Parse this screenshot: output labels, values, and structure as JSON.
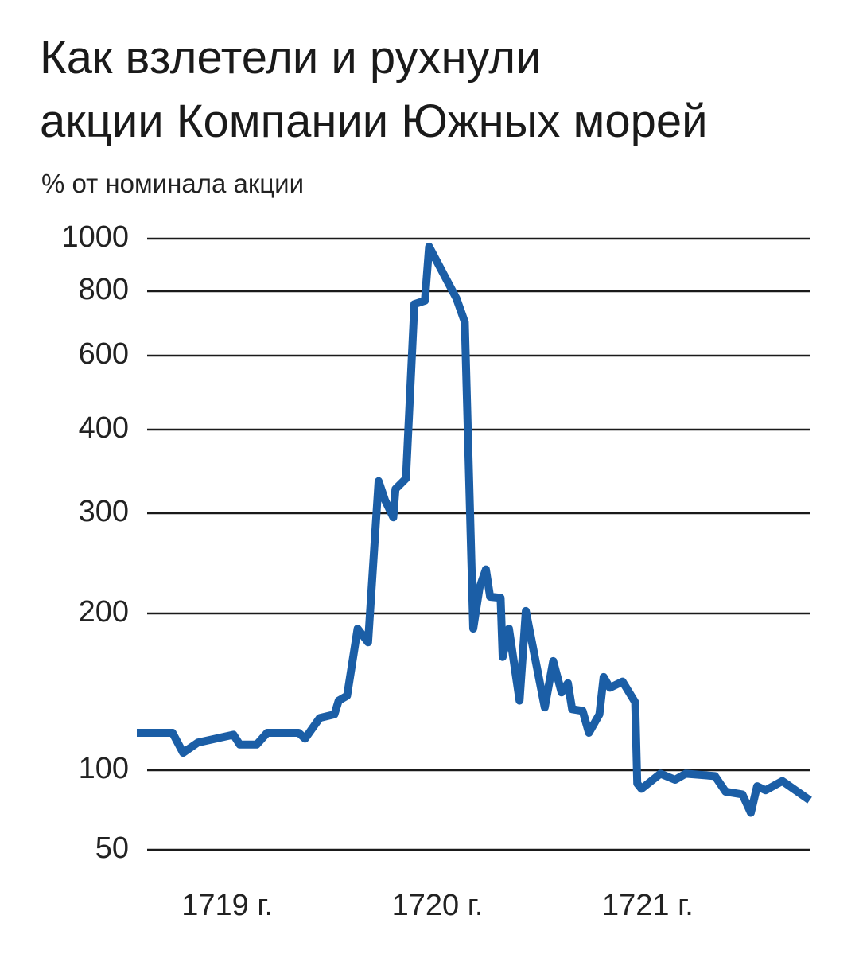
{
  "chart_data": {
    "type": "line",
    "title": [
      "Как взлетели и рухнули",
      "акции Компании Южных морей"
    ],
    "y_label": "% от номинала акции",
    "x": [
      1719.07,
      1719.24,
      1719.29,
      1719.36,
      1719.53,
      1719.56,
      1719.64,
      1719.69,
      1719.84,
      1719.87,
      1719.94,
      1720.01,
      1720.03,
      1720.07,
      1720.12,
      1720.17,
      1720.22,
      1720.25,
      1720.29,
      1720.3,
      1720.35,
      1720.39,
      1720.44,
      1720.46,
      1720.59,
      1720.63,
      1720.67,
      1720.7,
      1720.73,
      1720.75,
      1720.8,
      1720.81,
      1720.84,
      1720.89,
      1720.92,
      1721.01,
      1721.05,
      1721.09,
      1721.12,
      1721.14,
      1721.19,
      1721.22,
      1721.27,
      1721.29,
      1721.32,
      1721.38,
      1721.44,
      1721.45,
      1721.47,
      1721.56,
      1721.63,
      1721.68,
      1721.82,
      1721.87,
      1721.95,
      1721.99,
      1722.02,
      1722.06,
      1722.14,
      1722.27
    ],
    "series": [
      {
        "color": "#1b5ea6",
        "values": [
          118,
          118,
          108,
          113,
          117,
          112,
          112,
          118,
          118,
          115,
          126,
          128,
          136,
          139,
          187,
          176,
          335,
          314,
          295,
          326,
          338,
          755,
          767,
          967,
          775,
          697,
          187,
          222,
          239,
          214,
          213,
          165,
          187,
          136,
          202,
          132,
          162,
          141,
          147,
          131,
          130,
          118,
          128,
          151,
          144,
          148,
          135,
          89,
          85,
          97,
          92,
          97,
          95,
          83,
          81,
          69,
          87,
          84,
          91,
          77
        ]
      }
    ],
    "xlim": [
      1719.07,
      1722.27
    ],
    "xticks": [
      {
        "value": 1719.5,
        "label": "1719 г."
      },
      {
        "value": 1720.5,
        "label": "1720 г."
      },
      {
        "value": 1721.5,
        "label": "1721 г."
      }
    ],
    "ylim": [
      50,
      1000
    ],
    "yticks": [
      50,
      100,
      200,
      300,
      400,
      600,
      800,
      1000
    ],
    "grid": true
  }
}
